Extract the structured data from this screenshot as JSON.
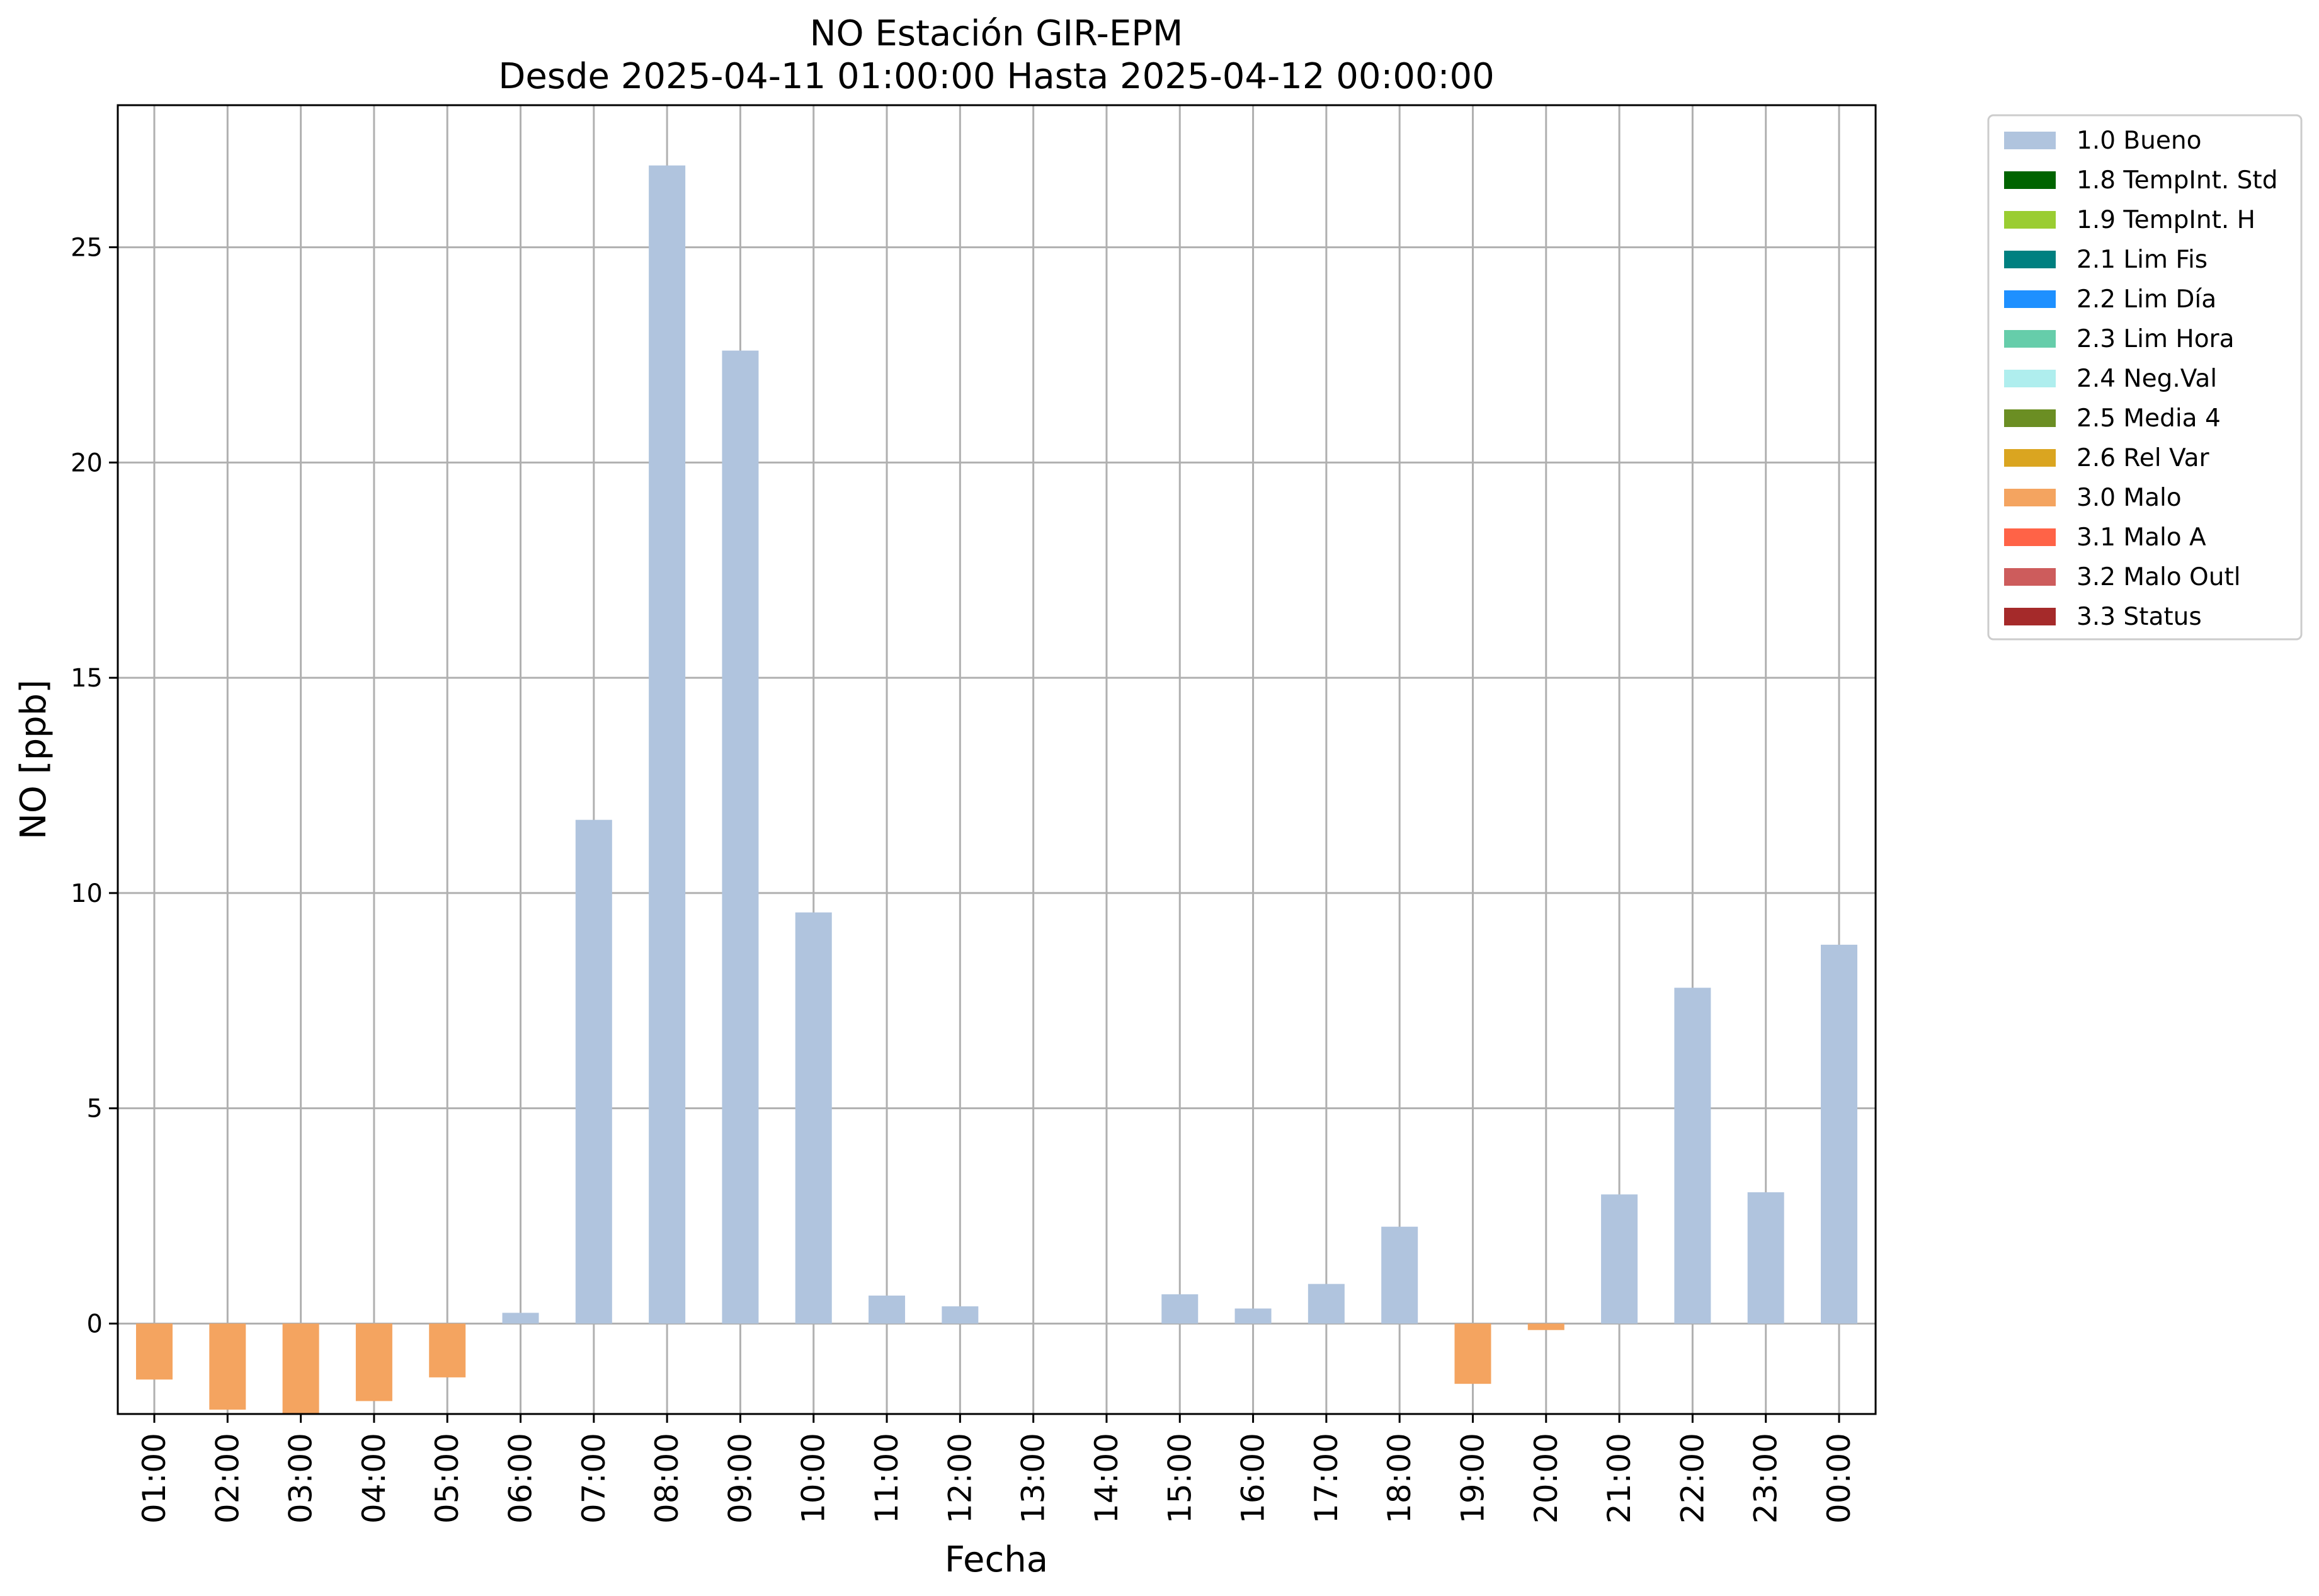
{
  "chart_data": {
    "type": "bar",
    "title": "NO Estación GIR-EPM",
    "subtitle": "Desde 2025-04-11 01:00:00 Hasta 2025-04-12 00:00:00",
    "xlabel": "Fecha",
    "ylabel": "NO [ppb]",
    "ylim": [
      -2.1,
      28.3
    ],
    "yticks": [
      0,
      5,
      10,
      15,
      20,
      25
    ],
    "grid": true,
    "legend_position": "outside-top-right",
    "categories": [
      "01:00",
      "02:00",
      "03:00",
      "04:00",
      "05:00",
      "06:00",
      "07:00",
      "08:00",
      "09:00",
      "10:00",
      "11:00",
      "12:00",
      "13:00",
      "14:00",
      "15:00",
      "16:00",
      "17:00",
      "18:00",
      "19:00",
      "20:00",
      "21:00",
      "22:00",
      "23:00",
      "00:00"
    ],
    "values": [
      -1.3,
      -2.0,
      -2.1,
      -1.8,
      -1.25,
      0.25,
      11.7,
      26.9,
      22.6,
      9.55,
      0.65,
      0.4,
      null,
      null,
      0.68,
      0.35,
      0.92,
      2.25,
      -1.4,
      -0.15,
      3.0,
      7.8,
      3.05,
      8.8
    ],
    "quality": [
      "3.0 Malo",
      "3.0 Malo",
      "3.0 Malo",
      "3.0 Malo",
      "3.0 Malo",
      "1.0 Bueno",
      "1.0 Bueno",
      "1.0 Bueno",
      "1.0 Bueno",
      "1.0 Bueno",
      "1.0 Bueno",
      "1.0 Bueno",
      null,
      null,
      "1.0 Bueno",
      "1.0 Bueno",
      "1.0 Bueno",
      "1.0 Bueno",
      "3.0 Malo",
      "3.0 Malo",
      "1.0 Bueno",
      "1.0 Bueno",
      "1.0 Bueno",
      "1.0 Bueno"
    ],
    "legend": [
      {
        "label": "1.0 Bueno",
        "color": "#b0c4de"
      },
      {
        "label": "1.8 TempInt. Std",
        "color": "#006400"
      },
      {
        "label": "1.9 TempInt. H",
        "color": "#9acd32"
      },
      {
        "label": "2.1 Lim Fis",
        "color": "#008080"
      },
      {
        "label": "2.2 Lim Día",
        "color": "#1e90ff"
      },
      {
        "label": "2.3 Lim Hora",
        "color": "#66cdaa"
      },
      {
        "label": "2.4 Neg.Val",
        "color": "#afeeee"
      },
      {
        "label": "2.5 Media 4",
        "color": "#6b8e23"
      },
      {
        "label": "2.6 Rel Var",
        "color": "#daa520"
      },
      {
        "label": "3.0 Malo",
        "color": "#f4a460"
      },
      {
        "label": "3.1 Malo A",
        "color": "#ff6347"
      },
      {
        "label": "3.2 Malo Outl",
        "color": "#cd5c5c"
      },
      {
        "label": "3.3 Status",
        "color": "#a52a2a"
      }
    ]
  }
}
